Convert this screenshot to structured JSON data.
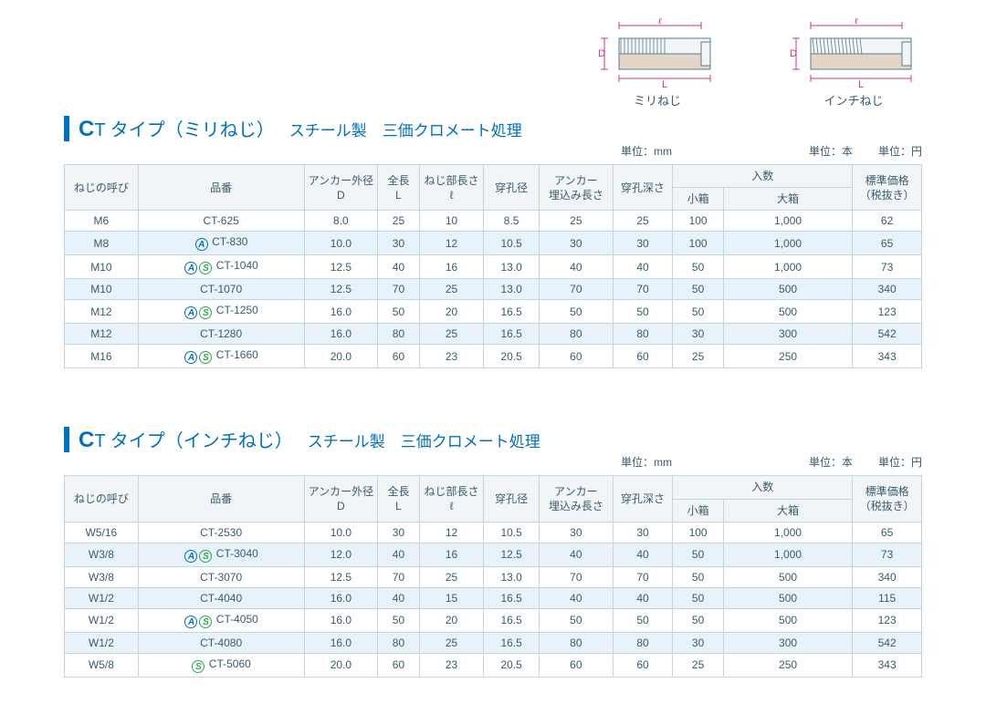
{
  "diagrams": {
    "left_caption": "ミリねじ",
    "right_caption": "インチねじ",
    "label_D": "D",
    "label_L": "L",
    "label_ell": "ℓ",
    "dim_color": "#d63384",
    "body_fill": "#f1f5f8",
    "body_stroke": "#5f7a88"
  },
  "units": {
    "mm": "単位：mm",
    "hon": "単位：本",
    "yen": "単位：円"
  },
  "titles": {
    "t1_prefix_c": "C",
    "t1_main": "T タイプ（ミリねじ）",
    "t1_sub": "スチール製　三価クロメート処理",
    "t2_prefix_c": "C",
    "t2_main": "T タイプ（インチねじ）",
    "t2_sub": "スチール製　三価クロメート処理"
  },
  "headers": {
    "thread": "ねじの呼び",
    "part": "品番",
    "d1": "アンカー外径",
    "d2": "D",
    "l1": "全長",
    "l2": "L",
    "ell1": "ねじ部長さ",
    "ell2": "ℓ",
    "drill": "穿孔径",
    "embed1": "アンカー",
    "embed2": "埋込み長さ",
    "depth": "穿孔深さ",
    "qty": "入数",
    "small": "小箱",
    "large": "大箱",
    "price1": "標準価格",
    "price2": "（税抜き）"
  },
  "icon_text": {
    "a": "A",
    "s": "S"
  },
  "table1": {
    "rows": [
      {
        "thread": "M6",
        "part": "CT-625",
        "icons": [],
        "d": "8.0",
        "l": "25",
        "ell": "10",
        "drill": "8.5",
        "embed": "25",
        "depth": "25",
        "small": "100",
        "large": "1,000",
        "price": "62"
      },
      {
        "thread": "M8",
        "part": "CT-830",
        "icons": [
          "a"
        ],
        "d": "10.0",
        "l": "30",
        "ell": "12",
        "drill": "10.5",
        "embed": "30",
        "depth": "30",
        "small": "100",
        "large": "1,000",
        "price": "65"
      },
      {
        "thread": "M10",
        "part": "CT-1040",
        "icons": [
          "a",
          "s"
        ],
        "d": "12.5",
        "l": "40",
        "ell": "16",
        "drill": "13.0",
        "embed": "40",
        "depth": "40",
        "small": "50",
        "large": "1,000",
        "price": "73"
      },
      {
        "thread": "M10",
        "part": "CT-1070",
        "icons": [],
        "d": "12.5",
        "l": "70",
        "ell": "25",
        "drill": "13.0",
        "embed": "70",
        "depth": "70",
        "small": "50",
        "large": "500",
        "price": "340"
      },
      {
        "thread": "M12",
        "part": "CT-1250",
        "icons": [
          "a",
          "s"
        ],
        "d": "16.0",
        "l": "50",
        "ell": "20",
        "drill": "16.5",
        "embed": "50",
        "depth": "50",
        "small": "50",
        "large": "500",
        "price": "123"
      },
      {
        "thread": "M12",
        "part": "CT-1280",
        "icons": [],
        "d": "16.0",
        "l": "80",
        "ell": "25",
        "drill": "16.5",
        "embed": "80",
        "depth": "80",
        "small": "30",
        "large": "300",
        "price": "542"
      },
      {
        "thread": "M16",
        "part": "CT-1660",
        "icons": [
          "a",
          "s"
        ],
        "d": "20.0",
        "l": "60",
        "ell": "23",
        "drill": "20.5",
        "embed": "60",
        "depth": "60",
        "small": "25",
        "large": "250",
        "price": "343"
      }
    ]
  },
  "table2": {
    "rows": [
      {
        "thread": "W5/16",
        "part": "CT-2530",
        "icons": [],
        "d": "10.0",
        "l": "30",
        "ell": "12",
        "drill": "10.5",
        "embed": "30",
        "depth": "30",
        "small": "100",
        "large": "1,000",
        "price": "65"
      },
      {
        "thread": "W3/8",
        "part": "CT-3040",
        "icons": [
          "a",
          "s"
        ],
        "d": "12.0",
        "l": "40",
        "ell": "16",
        "drill": "12.5",
        "embed": "40",
        "depth": "40",
        "small": "50",
        "large": "1,000",
        "price": "73"
      },
      {
        "thread": "W3/8",
        "part": "CT-3070",
        "icons": [],
        "d": "12.5",
        "l": "70",
        "ell": "25",
        "drill": "13.0",
        "embed": "70",
        "depth": "70",
        "small": "50",
        "large": "500",
        "price": "340"
      },
      {
        "thread": "W1/2",
        "part": "CT-4040",
        "icons": [],
        "d": "16.0",
        "l": "40",
        "ell": "15",
        "drill": "16.5",
        "embed": "40",
        "depth": "40",
        "small": "50",
        "large": "500",
        "price": "115"
      },
      {
        "thread": "W1/2",
        "part": "CT-4050",
        "icons": [
          "a",
          "s"
        ],
        "d": "16.0",
        "l": "50",
        "ell": "20",
        "drill": "16.5",
        "embed": "50",
        "depth": "50",
        "small": "50",
        "large": "500",
        "price": "123"
      },
      {
        "thread": "W1/2",
        "part": "CT-4080",
        "icons": [],
        "d": "16.0",
        "l": "80",
        "ell": "25",
        "drill": "16.5",
        "embed": "80",
        "depth": "80",
        "small": "30",
        "large": "300",
        "price": "542"
      },
      {
        "thread": "W5/8",
        "part": "CT-5060",
        "icons": [
          "s"
        ],
        "d": "20.0",
        "l": "60",
        "ell": "23",
        "drill": "20.5",
        "embed": "60",
        "depth": "60",
        "small": "25",
        "large": "250",
        "price": "343"
      }
    ]
  }
}
